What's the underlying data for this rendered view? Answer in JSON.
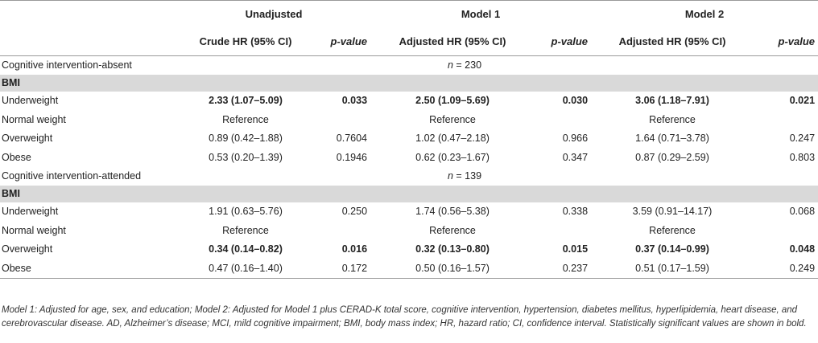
{
  "header": {
    "groups": [
      "Unadjusted",
      "Model 1",
      "Model 2"
    ],
    "cols": [
      "Crude HR (95% CI)",
      "p-value",
      "Adjusted HR (95% CI)",
      "p-value",
      "Adjusted HR (95% CI)",
      "p-value"
    ]
  },
  "sections": [
    {
      "title": "Cognitive intervention-absent",
      "n_label": "n",
      "n_value": "= 230",
      "group": "BMI",
      "rows": [
        {
          "label": "Underweight",
          "c1": "2.33 (1.07–5.09)",
          "p1": "0.033",
          "c2": "2.50 (1.09–5.69)",
          "p2": "0.030",
          "c3": "3.06 (1.18–7.91)",
          "p3": "0.021"
        },
        {
          "label": "Normal weight",
          "c1": "Reference",
          "p1": "",
          "c2": "Reference",
          "p2": "",
          "c3": "Reference",
          "p3": ""
        },
        {
          "label": "Overweight",
          "c1": "0.89 (0.42–1.88)",
          "p1": "0.7604",
          "c2": "1.02 (0.47–2.18)",
          "p2": "0.966",
          "c3": "1.64 (0.71–3.78)",
          "p3": "0.247"
        },
        {
          "label": "Obese",
          "c1": "0.53 (0.20–1.39)",
          "p1": "0.1946",
          "c2": "0.62 (0.23–1.67)",
          "p2": "0.347",
          "c3": "0.87 (0.29–2.59)",
          "p3": "0.803"
        }
      ]
    },
    {
      "title": "Cognitive intervention-attended",
      "n_label": "n",
      "n_value": "= 139",
      "group": "BMI",
      "rows": [
        {
          "label": "Underweight",
          "c1": "1.91 (0.63–5.76)",
          "p1": "0.250",
          "c2": "1.74 (0.56–5.38)",
          "p2": "0.338",
          "c3": "3.59 (0.91–14.17)",
          "p3": "0.068"
        },
        {
          "label": "Normal weight",
          "c1": "Reference",
          "p1": "",
          "c2": "Reference",
          "p2": "",
          "c3": "Reference",
          "p3": ""
        },
        {
          "label": "Overweight",
          "c1": "0.34 (0.14–0.82)",
          "p1": "0.016",
          "c2": "0.32 (0.13–0.80)",
          "p2": "0.015",
          "c3": "0.37 (0.14–0.99)",
          "p3": "0.048"
        },
        {
          "label": "Obese",
          "c1": "0.47 (0.16–1.40)",
          "p1": "0.172",
          "c2": "0.50 (0.16–1.57)",
          "p2": "0.237",
          "c3": "0.51 (0.17–1.59)",
          "p3": "0.249"
        }
      ]
    }
  ],
  "footnote": "Model 1: Adjusted for age, sex, and education; Model 2: Adjusted for Model 1 plus CERAD-K total score, cognitive intervention, hypertension, diabetes mellitus, hyperlipidemia, heart disease, and cerebrovascular disease. AD, Alzheimer’s disease; MCI, mild cognitive impairment; BMI, body mass index; HR, hazard ratio; CI, confidence interval. Statistically significant values are shown in bold."
}
